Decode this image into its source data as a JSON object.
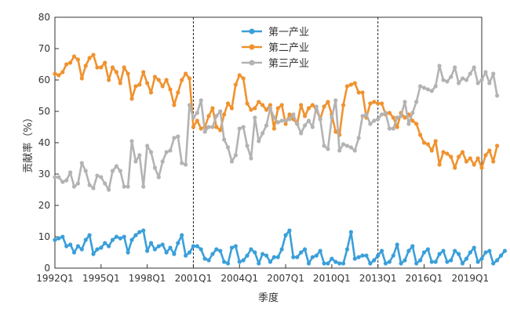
{
  "chart_data": {
    "type": "line",
    "title": "",
    "xlabel": "季度",
    "ylabel": "贡献率（%）",
    "ylim": [
      0,
      80
    ],
    "yticks": [
      0,
      10,
      20,
      30,
      40,
      50,
      60,
      70,
      80
    ],
    "x_start": "1992Q1",
    "x_end": "2019Q4",
    "xticks": [
      "1992Q1",
      "1995Q1",
      "1998Q1",
      "2001Q1",
      "2004Q1",
      "2007Q1",
      "2010Q1",
      "2013Q1",
      "2016Q1",
      "2019Q1"
    ],
    "vlines": [
      "2001Q1",
      "2013Q1"
    ],
    "grid": false,
    "legend_position": "top-center",
    "series": [
      {
        "name": "第一产业",
        "color": "#3a9fd9",
        "values": [
          9.0,
          9.5,
          10.0,
          7.0,
          7.5,
          5.0,
          7.0,
          6.0,
          9.0,
          10.5,
          4.5,
          6.0,
          6.5,
          8.0,
          7.0,
          9.0,
          10.0,
          9.5,
          10.0,
          5.0,
          9.0,
          10.5,
          11.5,
          12.0,
          5.5,
          8.0,
          6.0,
          7.0,
          7.5,
          5.0,
          6.5,
          4.5,
          8.0,
          10.5,
          4.0,
          5.0,
          7.0,
          7.0,
          6.0,
          3.0,
          2.5,
          4.5,
          6.0,
          5.5,
          2.0,
          1.5,
          6.5,
          7.0,
          2.0,
          2.5,
          4.0,
          6.0,
          5.0,
          1.5,
          4.5,
          4.0,
          2.0,
          3.5,
          3.5,
          6.0,
          10.5,
          12.0,
          3.5,
          3.5,
          5.0,
          6.0,
          1.5,
          3.5,
          4.0,
          5.5,
          1.5,
          1.5,
          3.0,
          2.0,
          1.5,
          1.5,
          6.0,
          11.5,
          3.0,
          3.5,
          4.0,
          4.0,
          1.5,
          2.5,
          4.0,
          5.5,
          1.5,
          2.0,
          4.0,
          7.5,
          1.5,
          2.5,
          5.5,
          7.0,
          1.5,
          2.5,
          5.0,
          6.0,
          2.0,
          2.0,
          4.5,
          5.5,
          2.0,
          2.5,
          5.5,
          4.5,
          1.5,
          3.0,
          5.0,
          6.5,
          2.0,
          3.0,
          5.0,
          5.5,
          1.5,
          2.5,
          4.0,
          5.5
        ]
      },
      {
        "name": "第二产业",
        "color": "#f0922e",
        "values": [
          62.0,
          61.5,
          62.5,
          65.0,
          65.5,
          67.5,
          66.5,
          60.5,
          64.5,
          67.0,
          68.0,
          64.0,
          64.0,
          65.5,
          60.0,
          64.0,
          62.5,
          59.0,
          64.0,
          62.0,
          54.0,
          58.0,
          58.5,
          62.5,
          59.0,
          56.0,
          61.0,
          60.0,
          58.0,
          60.0,
          57.0,
          52.0,
          56.0,
          60.0,
          62.0,
          60.5,
          45.0,
          47.0,
          44.5,
          45.0,
          48.5,
          51.0,
          45.0,
          44.0,
          49.0,
          52.5,
          51.0,
          58.5,
          61.5,
          60.5,
          52.5,
          50.5,
          51.0,
          53.0,
          52.0,
          50.5,
          52.0,
          44.5,
          51.0,
          52.0,
          46.0,
          49.0,
          47.5,
          46.0,
          52.0,
          48.5,
          51.0,
          52.0,
          50.5,
          47.5,
          51.5,
          53.0,
          49.0,
          43.5,
          42.5,
          52.0,
          58.0,
          58.5,
          59.0,
          56.0,
          56.0,
          48.0,
          52.5,
          53.0,
          52.5,
          52.5,
          49.0,
          49.5,
          48.0,
          45.0,
          49.5,
          48.0,
          49.0,
          47.0,
          46.0,
          42.5,
          40.0,
          39.5,
          37.5,
          40.5,
          33.0,
          37.0,
          36.5,
          35.5,
          32.0,
          35.5,
          37.0,
          34.0,
          35.0,
          33.0,
          35.0,
          32.0,
          36.0,
          37.5,
          34.0,
          39.0
        ]
      },
      {
        "name": "第三产业",
        "color": "#b3b3b3",
        "values": [
          29.0,
          29.0,
          27.5,
          28.0,
          30.5,
          26.0,
          27.0,
          33.5,
          31.0,
          26.5,
          25.5,
          29.5,
          29.0,
          27.0,
          25.0,
          31.0,
          32.5,
          31.0,
          26.0,
          26.0,
          40.5,
          34.0,
          36.0,
          26.0,
          39.0,
          37.0,
          32.0,
          29.0,
          34.0,
          37.0,
          37.5,
          41.5,
          42.0,
          33.5,
          33.0,
          52.0,
          48.0,
          49.5,
          53.5,
          43.5,
          45.0,
          45.0,
          48.5,
          50.0,
          41.0,
          38.5,
          34.0,
          36.0,
          44.5,
          45.0,
          39.0,
          35.0,
          48.0,
          40.5,
          43.0,
          45.5,
          51.0,
          48.0,
          46.5,
          47.0,
          47.0,
          47.5,
          49.0,
          46.0,
          43.0,
          45.5,
          47.0,
          45.0,
          51.5,
          47.5,
          39.0,
          38.0,
          48.0,
          53.5,
          37.5,
          39.5,
          39.0,
          38.5,
          37.5,
          41.5,
          48.5,
          49.0,
          46.0,
          47.0,
          47.5,
          49.0,
          49.5,
          44.5,
          44.5,
          48.0,
          48.5,
          53.0,
          46.0,
          49.5,
          53.0,
          58.0,
          57.5,
          57.0,
          56.5,
          58.0,
          64.5,
          60.0,
          59.5,
          61.0,
          64.0,
          59.0,
          60.5,
          60.0,
          62.0,
          64.0,
          59.0,
          60.0,
          62.5,
          59.0,
          62.0,
          55.0
        ]
      }
    ]
  }
}
